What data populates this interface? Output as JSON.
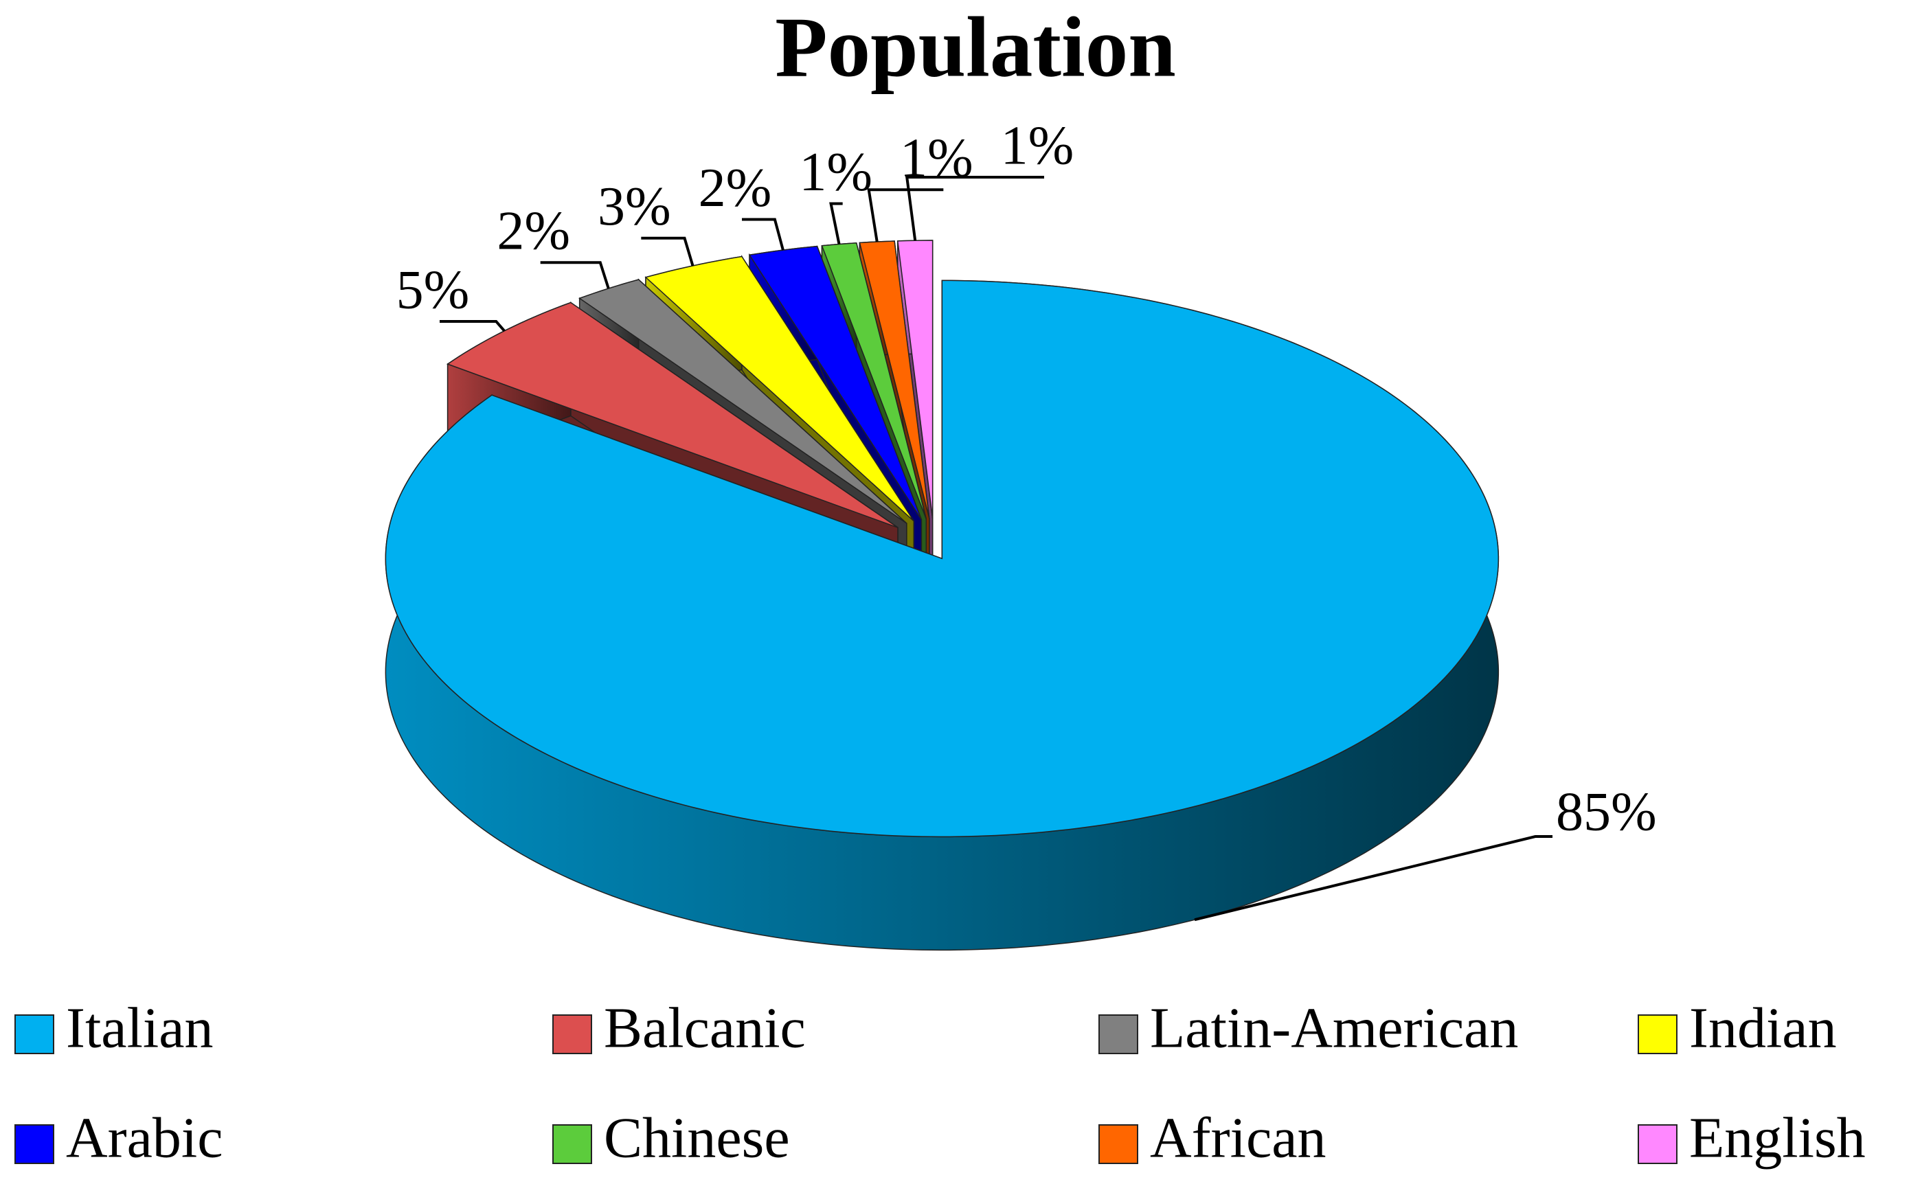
{
  "chart_data": {
    "type": "pie",
    "title": "Population",
    "categories": [
      "Italian",
      "Balcanic",
      "Latin-American",
      "Indian",
      "Arabic",
      "Chinese",
      "African",
      "English"
    ],
    "values": [
      85,
      5,
      2,
      3,
      2,
      1,
      1,
      1
    ],
    "value_labels": [
      "85%",
      "5%",
      "2%",
      "3%",
      "2%",
      "1%",
      "1%",
      "1%"
    ],
    "colors": [
      "#00b0f0",
      "#dc4f4f",
      "#808080",
      "#ffff00",
      "#0000ff",
      "#5ccc3c",
      "#ff6600",
      "#ff88ff"
    ],
    "legend": "bottom"
  }
}
